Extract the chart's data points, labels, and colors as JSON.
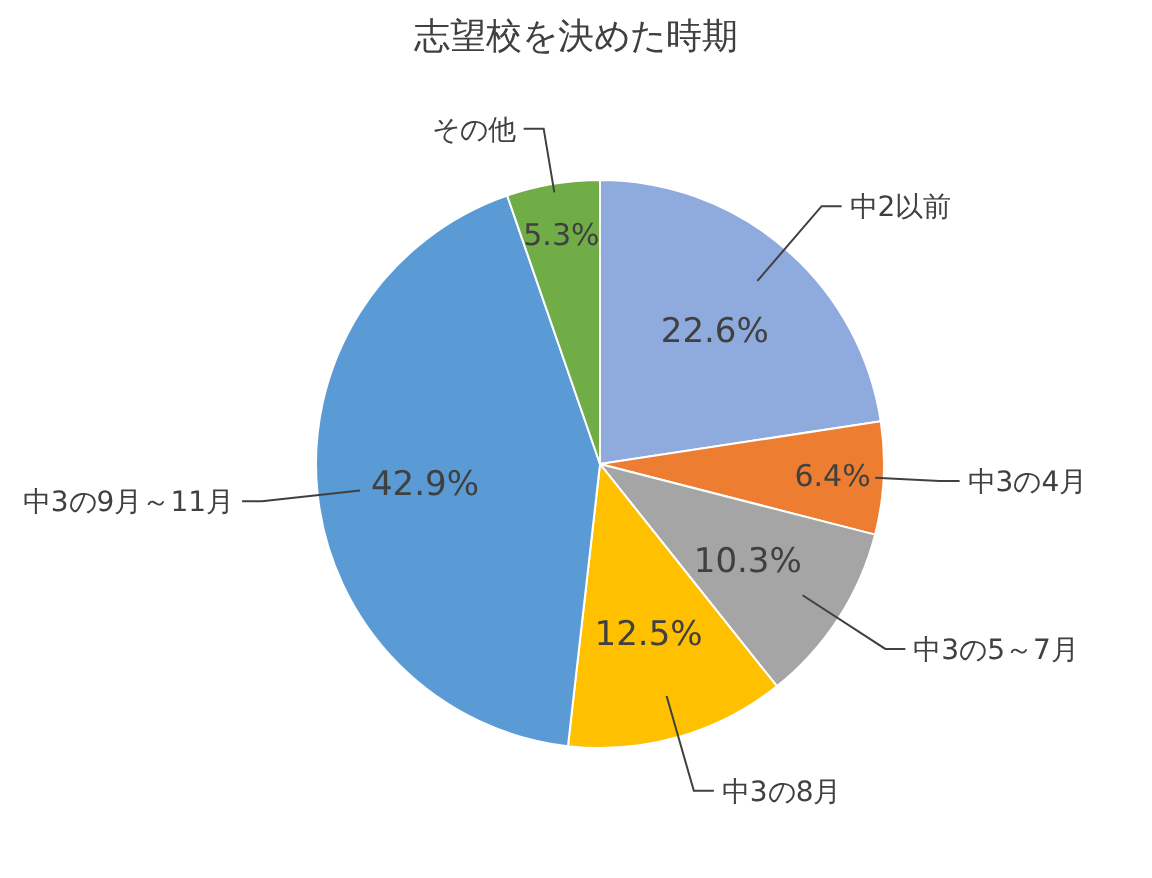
{
  "chart_data": {
    "type": "pie",
    "title": "志望校を決めた時期",
    "categories": [
      "中2以前",
      "中3の4月",
      "中3の5～7月",
      "中3の8月",
      "中3の9月～11月",
      "その他"
    ],
    "values": [
      22.6,
      6.4,
      10.3,
      12.5,
      42.9,
      5.3
    ],
    "value_labels": [
      "22.6%",
      "6.4%",
      "10.3%",
      "12.5%",
      "42.9%",
      "5.3%"
    ],
    "colors": [
      "#8faadc",
      "#ed7d31",
      "#a5a5a5",
      "#ffc000",
      "#5b9bd5",
      "#70ad47"
    ]
  }
}
